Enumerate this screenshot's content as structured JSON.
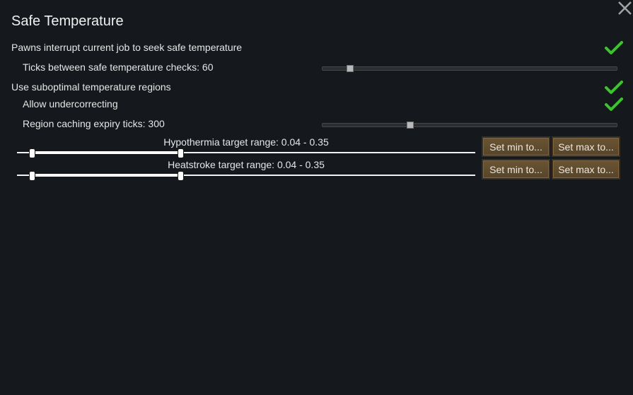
{
  "dialog": {
    "title": "Safe Temperature"
  },
  "settings": {
    "interrupt_label": "Pawns interrupt current job to seek safe temperature",
    "interrupt_checked": true,
    "ticks_label": "Ticks between safe temperature checks: 60",
    "suboptimal_label": "Use suboptimal temperature regions",
    "suboptimal_checked": true,
    "undercorrect_label": "Allow undercorrecting",
    "undercorrect_checked": true,
    "expiry_label": "Region caching expiry ticks: 300"
  },
  "ranges": {
    "hypothermia_label": "Hypothermia target range: 0.04 - 0.35",
    "heatstroke_label": "Heatstroke target range: 0.04 - 0.35"
  },
  "buttons": {
    "set_min": "Set min to...",
    "set_max": "Set max to..."
  },
  "colors": {
    "check": "#39c42a",
    "button": "#5f4b2f"
  }
}
